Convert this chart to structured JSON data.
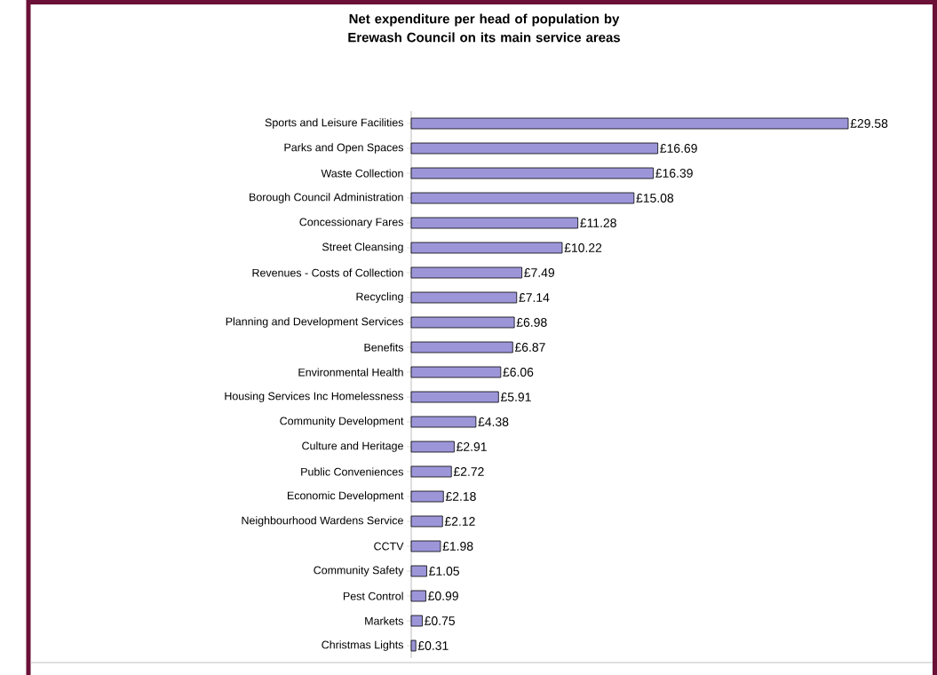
{
  "chart_data": {
    "type": "bar",
    "orientation": "horizontal",
    "title": "Net expenditure per head of population by Erewash Council on its main service areas",
    "categories": [
      "Sports and Leisure Facilities",
      "Parks and Open Spaces",
      "Waste Collection",
      "Borough Council Administration",
      "Concessionary Fares",
      "Street Cleansing",
      "Revenues - Costs of Collection",
      "Recycling",
      "Planning and Development Services",
      "Benefits",
      "Environmental Health",
      "Housing Services Inc Homelessness",
      "Community Development",
      "Culture and Heritage",
      "Public Conveniences",
      "Economic Development",
      "Neighbourhood Wardens Service",
      "CCTV",
      "Community Safety",
      "Pest Control",
      "Markets",
      "Christmas Lights"
    ],
    "values": [
      29.58,
      16.69,
      16.39,
      15.08,
      11.28,
      10.22,
      7.49,
      7.14,
      6.98,
      6.87,
      6.06,
      5.91,
      4.38,
      2.91,
      2.72,
      2.18,
      2.12,
      1.98,
      1.05,
      0.99,
      0.75,
      0.31
    ],
    "value_labels": [
      "£29.58",
      "£16.69",
      "£16.39",
      "£15.08",
      "£11.28",
      "£10.22",
      "£7.49",
      "£7.14",
      "£6.98",
      "£6.87",
      "£6.06",
      "£5.91",
      "£4.38",
      "£2.91",
      "£2.72",
      "£2.18",
      "£2.12",
      "£1.98",
      "£1.05",
      "£0.99",
      "£0.75",
      "£0.31"
    ],
    "color": "#9c96d9"
  }
}
